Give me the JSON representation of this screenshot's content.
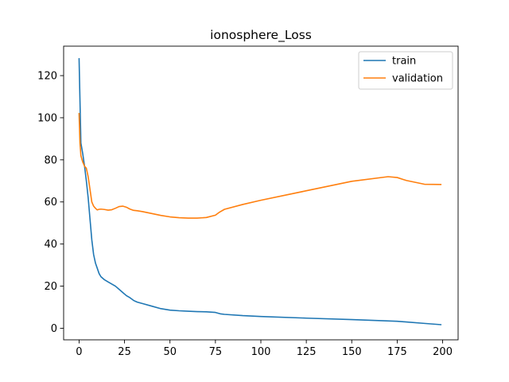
{
  "chart_data": {
    "type": "line",
    "title": "ionosphere_Loss",
    "xlabel": "",
    "ylabel": "",
    "xlim": [
      -8.5,
      208.5
    ],
    "ylim": [
      -5.5,
      134
    ],
    "x_ticks": [
      0,
      25,
      50,
      75,
      100,
      125,
      150,
      175,
      200
    ],
    "y_ticks": [
      0,
      20,
      40,
      60,
      80,
      100,
      120
    ],
    "grid": false,
    "legend_position": "top-right",
    "series": [
      {
        "name": "train",
        "color": "#1f77b4",
        "x": [
          0,
          1,
          2,
          3,
          4,
          5,
          6,
          7,
          8,
          9,
          10,
          11,
          12,
          14,
          16,
          18,
          20,
          22,
          24,
          26,
          28,
          30,
          32,
          35,
          40,
          45,
          50,
          55,
          60,
          65,
          70,
          75,
          78,
          80,
          90,
          100,
          125,
          150,
          175,
          180,
          190,
          199
        ],
        "y": [
          128,
          88,
          83,
          77,
          70,
          62,
          52,
          42,
          35,
          31,
          28.5,
          26,
          24.5,
          23,
          22,
          21,
          20,
          18.5,
          17,
          15.5,
          14.5,
          13.2,
          12.4,
          11.7,
          10.5,
          9.3,
          8.6,
          8.3,
          8.1,
          7.9,
          7.8,
          7.5,
          6.8,
          6.6,
          6.0,
          5.6,
          4.8,
          4.1,
          3.3,
          3.0,
          2.3,
          1.7
        ]
      },
      {
        "name": "validation",
        "color": "#ff7f0e",
        "x": [
          0,
          0.5,
          1,
          2,
          3,
          4,
          5,
          6,
          7,
          8,
          9,
          10,
          11,
          12,
          14,
          16,
          18,
          20,
          22,
          24,
          26,
          28,
          30,
          32,
          35,
          40,
          45,
          50,
          55,
          60,
          65,
          70,
          75,
          77,
          80,
          90,
          100,
          125,
          150,
          170,
          175,
          180,
          190,
          199
        ],
        "y": [
          102,
          88,
          82,
          79,
          77,
          76,
          72,
          66,
          60,
          58,
          57,
          56.2,
          56.5,
          56.6,
          56.4,
          56.1,
          56.3,
          57,
          57.8,
          58,
          57.5,
          56.6,
          56,
          55.8,
          55.4,
          54.5,
          53.6,
          52.9,
          52.5,
          52.3,
          52.3,
          52.6,
          53.7,
          55,
          56.5,
          58.8,
          60.8,
          65.3,
          69.8,
          72.0,
          71.6,
          70.2,
          68.4,
          68.3
        ]
      }
    ]
  }
}
